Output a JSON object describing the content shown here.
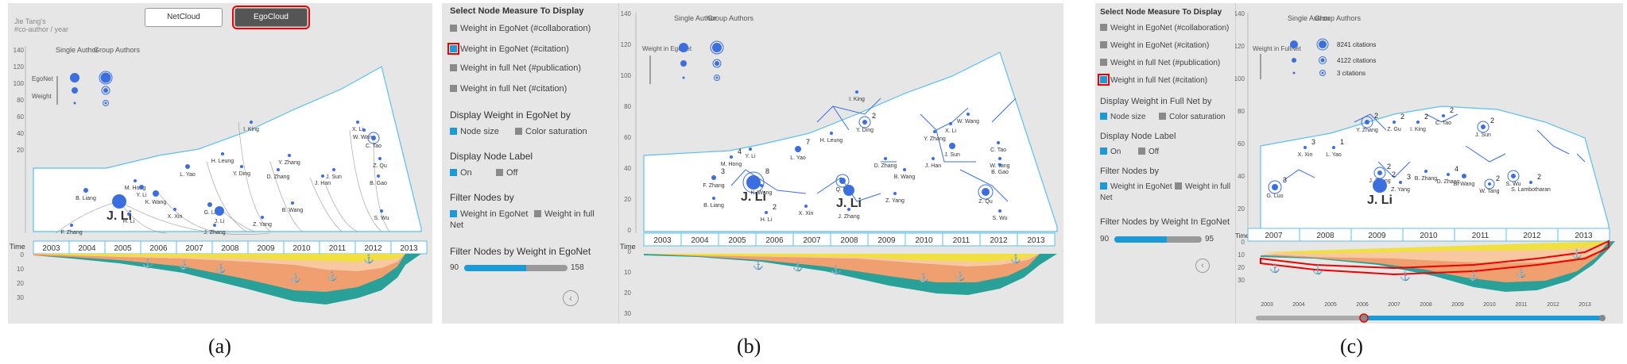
{
  "captions": [
    "(a)",
    "(b)",
    "(c)"
  ],
  "panel_a": {
    "tabs": {
      "netcloud": "NetCloud",
      "egocloud": "EgoCloud"
    },
    "ylabel_line1": "Jie Tang's",
    "ylabel_line2": "#co-author / year",
    "legend_single": "Single Author",
    "legend_group": "Group Authors",
    "legend_egonet": "EgoNet",
    "legend_weight": "Weight",
    "time_label": "Time",
    "y_ticks_top": [
      "140",
      "120",
      "100",
      "80",
      "60",
      "40",
      "20"
    ],
    "y_ticks_bottom": [
      "0",
      "10",
      "20",
      "30"
    ],
    "years": [
      "2003",
      "2004",
      "2005",
      "2006",
      "2007",
      "2008",
      "2009",
      "2010",
      "2011",
      "2012",
      "2013"
    ],
    "nodes": [
      "F. Zhang",
      "B. Liang",
      "J. Li",
      "H. Li",
      "M. Hong",
      "Y. Li",
      "K. Wang",
      "X. Xin",
      "L. Yao",
      "H. Leung",
      "G. Li",
      "J. Li",
      "J. Zhang",
      "I. King",
      "Y. Ding",
      "D. Zhang",
      "Y. Zhang",
      "B. Wang",
      "Z. Yang",
      "J. Sun",
      "J. Han",
      "X. Li",
      "W. Wang",
      "C. Tao",
      "Z. Qu",
      "B. Gao",
      "S. Wu"
    ]
  },
  "panel_b": {
    "controls": {
      "title_measure": "Select Node Measure To Display",
      "opt1": "Weight in EgoNet (#collaboration)",
      "opt2": "Weight in EgoNet (#citation)",
      "opt3": "Weight in full Net (#publication)",
      "opt4": "Weight in full Net (#citation)",
      "title_display": "Display Weight in EgoNet by",
      "size": "Node size",
      "color": "Color saturation",
      "title_label": "Display Node Label",
      "on": "On",
      "off": "Off",
      "title_filter": "Filter Nodes by",
      "filter1": "Weight in EgoNet",
      "filter2": "Weight in full",
      "filter2b": "Net",
      "title_filter_w": "Filter Nodes by Weight in EgoNet",
      "slider_min": "90",
      "slider_max": "158"
    },
    "ylabel": "Weight in EgoNet",
    "legend_single": "Single Author",
    "legend_group": "Group Authors",
    "time_label": "Time",
    "y_ticks_top": [
      "140",
      "120",
      "100",
      "80",
      "60",
      "40",
      "20",
      "0"
    ],
    "y_ticks_bottom": [
      "0",
      "10",
      "20",
      "30"
    ],
    "years": [
      "2003",
      "2004",
      "2005",
      "2006",
      "2007",
      "2008",
      "2009",
      "2010",
      "2011",
      "2012",
      "2013"
    ],
    "nodes": [
      "F. Zhang",
      "B. Liang",
      "M. Hong",
      "Y. Li",
      "J. Li",
      "K. Wang",
      "H. Li",
      "X. Xin",
      "L. Yao",
      "H. Leung",
      "Y. Ding",
      "I. King",
      "Q. Lu",
      "J. Li",
      "J. Zhang",
      "D. Zhang",
      "B. Wang",
      "Z. Yang",
      "Y. Zhang",
      "X. Li",
      "W. Wang",
      "J. Sun",
      "J. Han",
      "C. Tao",
      "W. Tang",
      "B. Gao",
      "Z. Qu",
      "S. Wu"
    ],
    "node_counts": [
      "3",
      "4",
      "8",
      "2",
      "7",
      "2"
    ]
  },
  "panel_c": {
    "controls": {
      "title_measure": "Select Node Measure To Display",
      "opt1": "Weight in EgoNet (#collaboration)",
      "opt2": "Weight in EgoNet (#citation)",
      "opt3": "Weight in full Net (#publication)",
      "opt4": "Weight in full Net (#citation)",
      "title_display": "Display Weight in Full Net by",
      "size": "Node size",
      "color": "Color saturation",
      "title_label": "Display Node Label",
      "on": "On",
      "off": "Off",
      "title_filter": "Filter Nodes by",
      "filter1": "Weight in EgoNet",
      "filter2": "Weight in full",
      "filter2b": "Net",
      "title_filter_w": "Filter Nodes by Weight In EgoNet",
      "slider_min": "90",
      "slider_max": "95"
    },
    "ylabel": "Weight in FullNet",
    "legend_single": "Single Author",
    "legend_group": "Group Authors",
    "legend_vals": [
      "8241 citations",
      "4122 citations",
      "3 citations"
    ],
    "time_label": "Time",
    "y_ticks_top": [
      "140",
      "120",
      "100",
      "80",
      "60",
      "40",
      "20"
    ],
    "y_ticks_bottom": [
      "0",
      "10",
      "20",
      "30"
    ],
    "years": [
      "2007",
      "2008",
      "2009",
      "2010",
      "2011",
      "2012",
      "2013"
    ],
    "mini_years": [
      "2003",
      "2004",
      "2005",
      "2006",
      "2007",
      "2008",
      "2009",
      "2010",
      "2011",
      "2012",
      "2013"
    ],
    "nodes": [
      "G. Luo",
      "X. Xin",
      "L. Yao",
      "Y. Zhang",
      "Z. Gu",
      "I. King",
      "C. Tao",
      "J. Sun",
      "J. Zhang",
      "J. Li",
      "Z. Yang",
      "B. Zhang",
      "D. Zhang",
      "B. Wang",
      "W. Tang",
      "S. Wu",
      "S. Lambotharan"
    ],
    "node_counts": [
      "3",
      "1",
      "2",
      "2",
      "2",
      "3",
      "4",
      "2",
      "2",
      "3",
      "2",
      "2",
      "2",
      "2"
    ]
  }
}
